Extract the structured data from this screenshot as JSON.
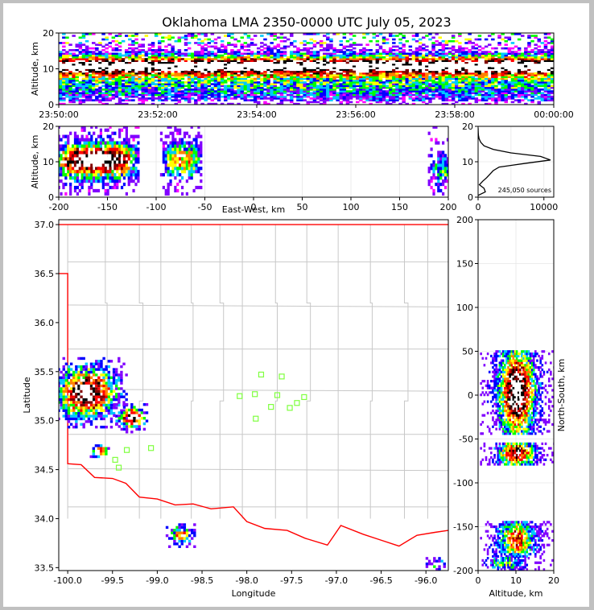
{
  "chart_data": {
    "title": "Oklahoma LMA 2350-0000 UTC July 05, 2023",
    "type": "heatmap",
    "colors": {
      "density_ramp": [
        "#ff00ff",
        "#8000ff",
        "#0000ff",
        "#00c8ff",
        "#00ff00",
        "#ffff00",
        "#ff8000",
        "#ff0000",
        "#800000",
        "#000000",
        "#ffffff"
      ],
      "state_border": "#ff0000",
      "county_lines": "#c8c8c8",
      "stations": "#7fff3f"
    },
    "panels": {
      "time_height": {
        "ylabel": "Altitude, km",
        "ylim": [
          0,
          20
        ],
        "yticks": [
          "0",
          "10",
          "20"
        ],
        "xticks": [
          "23:50:00",
          "23:52:00",
          "23:54:00",
          "23:56:00",
          "23:58:00",
          "00:00:00"
        ],
        "band": {
          "core_altitude_km": 11,
          "spread_km": [
            1,
            20
          ]
        }
      },
      "ew_height": {
        "xlabel": "East-West, km",
        "ylabel": "Altitude, km",
        "xlim": [
          -200,
          200
        ],
        "ylim": [
          0,
          20
        ],
        "xticks": [
          "-200",
          "-150",
          "-100",
          "-50",
          "0",
          "50",
          "100",
          "150",
          "200"
        ],
        "yticks": [
          "0",
          "10",
          "20"
        ],
        "clusters": [
          {
            "x": [
              -200,
              -125
            ],
            "peak_altitude_km": 10,
            "intensity": "very high"
          },
          {
            "x": [
              -90,
              -60
            ],
            "peak_altitude_km": 10,
            "intensity": "moderate"
          },
          {
            "x": [
              185,
              200
            ],
            "peak_altitude_km": 7,
            "intensity": "low"
          }
        ]
      },
      "altitude_histogram": {
        "xlim": [
          0,
          11500
        ],
        "ylim": [
          0,
          20
        ],
        "xticks": [
          "0",
          "10000"
        ],
        "yticks": [
          "0",
          "10",
          "20"
        ],
        "total_sources_label": "245,050 sources",
        "profile": [
          {
            "altitude_km": 0.5,
            "count": 0
          },
          {
            "altitude_km": 1.5,
            "count": 1100
          },
          {
            "altitude_km": 2.5,
            "count": 900
          },
          {
            "altitude_km": 3.5,
            "count": 200
          },
          {
            "altitude_km": 4.5,
            "count": 700
          },
          {
            "altitude_km": 5.5,
            "count": 1300
          },
          {
            "altitude_km": 6.5,
            "count": 1800
          },
          {
            "altitude_km": 7.5,
            "count": 2300
          },
          {
            "altitude_km": 8.5,
            "count": 3200
          },
          {
            "altitude_km": 9.5,
            "count": 7000
          },
          {
            "altitude_km": 10.5,
            "count": 11000
          },
          {
            "altitude_km": 11.5,
            "count": 9500
          },
          {
            "altitude_km": 12.5,
            "count": 5000
          },
          {
            "altitude_km": 13.5,
            "count": 2300
          },
          {
            "altitude_km": 14.5,
            "count": 900
          },
          {
            "altitude_km": 15.5,
            "count": 400
          },
          {
            "altitude_km": 16.5,
            "count": 150
          },
          {
            "altitude_km": 17.5,
            "count": 50
          },
          {
            "altitude_km": 18.5,
            "count": 15
          },
          {
            "altitude_km": 19.5,
            "count": 5
          }
        ]
      },
      "plan_view": {
        "xlabel": "Longitude",
        "ylabel": "Latitude",
        "xlim": [
          -100.1,
          -95.75
        ],
        "ylim": [
          33.47,
          37.05
        ],
        "xticks": [
          "-100.0",
          "-99.5",
          "-99.0",
          "-98.5",
          "-98.0",
          "-97.5",
          "-97.0",
          "-96.5",
          "-96.0"
        ],
        "yticks": [
          "33.5",
          "34.0",
          "34.5",
          "35.0",
          "35.5",
          "36.0",
          "36.5",
          "37.0"
        ],
        "stations": [
          {
            "lon": -97.84,
            "lat": 35.47
          },
          {
            "lon": -97.61,
            "lat": 35.45
          },
          {
            "lon": -98.08,
            "lat": 35.25
          },
          {
            "lon": -97.91,
            "lat": 35.27
          },
          {
            "lon": -97.66,
            "lat": 35.26
          },
          {
            "lon": -97.36,
            "lat": 35.24
          },
          {
            "lon": -97.44,
            "lat": 35.18
          },
          {
            "lon": -97.73,
            "lat": 35.14
          },
          {
            "lon": -97.52,
            "lat": 35.13
          },
          {
            "lon": -97.9,
            "lat": 35.02
          },
          {
            "lon": -99.07,
            "lat": 34.72
          },
          {
            "lon": -99.34,
            "lat": 34.7
          },
          {
            "lon": -99.47,
            "lat": 34.6
          },
          {
            "lon": -99.43,
            "lat": 34.52
          }
        ],
        "storm_cells": [
          {
            "lon": -99.8,
            "lat": 35.27,
            "extent": 0.35,
            "intensity": "very high"
          },
          {
            "lon": -99.3,
            "lat": 35.02,
            "extent": 0.15,
            "intensity": "very high"
          },
          {
            "lon": -99.65,
            "lat": 34.67,
            "extent": 0.08,
            "intensity": "high"
          },
          {
            "lon": -98.75,
            "lat": 33.82,
            "extent": 0.12,
            "intensity": "moderate"
          },
          {
            "lon": -95.9,
            "lat": 33.52,
            "extent": 0.08,
            "intensity": "low"
          }
        ]
      },
      "ns_height": {
        "xlabel": "Altitude, km",
        "ylabel": "North-South, km",
        "xlim": [
          0,
          20
        ],
        "ylim": [
          -200,
          200
        ],
        "xticks": [
          "0",
          "10",
          "20"
        ],
        "yticks": [
          "-200",
          "-150",
          "-100",
          "-50",
          "0",
          "50",
          "100",
          "150",
          "200"
        ],
        "clusters": [
          {
            "y": [
              -45,
              50
            ],
            "peak_altitude_km": 10,
            "intensity": "very high"
          },
          {
            "y": [
              -80,
              -55
            ],
            "peak_altitude_km": 10,
            "intensity": "high"
          },
          {
            "y": [
              -185,
              -145
            ],
            "peak_altitude_km": 10,
            "intensity": "moderate"
          },
          {
            "y": [
              -200,
              -185
            ],
            "peak_altitude_km": 7,
            "intensity": "low"
          }
        ]
      }
    }
  }
}
